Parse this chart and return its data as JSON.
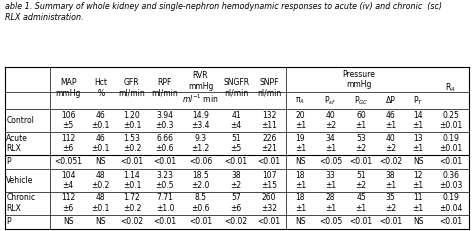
{
  "title": "able 1. Summary of whole kidney and single-nephron hemodynamic responses to acute (iv) and chronic  (sc)\nRLX administration.",
  "rows": [
    {
      "label": "Control",
      "data": [
        "106\n±5",
        "46\n±0.1",
        "1.20\n±0.1",
        "3.94\n±0.3",
        "14.9\n±3.4",
        "41\n±4",
        "132\n±11",
        "20\n±1",
        "40\n±2",
        "60\n±1",
        "46\n±1",
        "14\n±1",
        "0.25\n±0.01"
      ],
      "type": "data"
    },
    {
      "label": "Acute\nRLX",
      "data": [
        "112\n±6",
        "46\n±0.1",
        "1.53\n±0.2",
        "6.66\n±0.6",
        "9.3\n±1.2",
        "51\n±5",
        "226\n±21",
        "19\n±1",
        "34\n±1",
        "53\n±2",
        "40\n±2",
        "13\n±1",
        "0.19\n±0.01"
      ],
      "type": "data"
    },
    {
      "label": "P",
      "data": [
        "<0.051",
        "NS",
        "<0.01",
        "<0.01",
        "<0.06",
        "<0.01",
        "<0.01",
        "NS",
        "<0.05",
        "<0.01",
        "<0.02",
        "NS",
        "<0.01"
      ],
      "type": "p"
    },
    {
      "label": "Vehicle",
      "data": [
        "104\n±4",
        "48\n±0.2",
        "1.14\n±0.1",
        "3.23\n±0.5",
        "18.5\n±2.0",
        "38\n±2",
        "107\n±15",
        "18\n±1",
        "33\n±1",
        "51\n±2",
        "38\n±1",
        "12\n±1",
        "0.36\n±0.03"
      ],
      "type": "data"
    },
    {
      "label": "Chronic\nRLX",
      "data": [
        "112\n±6",
        "48\n±0.1",
        "1.72\n±0.2",
        "7.71\n±1.0",
        "8.5\n±0.6",
        "57\n±6",
        "260\n±32",
        "18\n±1",
        "28\n±1",
        "45\n±1",
        "35\n±2",
        "11\n±1",
        "0.19\n±0.04"
      ],
      "type": "data"
    },
    {
      "label": "P",
      "data": [
        "NS",
        "NS",
        "<0.02",
        "<0.01",
        "<0.01",
        "<0.02",
        "<0.01",
        "NS",
        "<0.05",
        "<0.01",
        "<0.01",
        "NS",
        "<0.01"
      ],
      "type": "p"
    }
  ],
  "bg_color": "#ffffff",
  "font_size": 5.5,
  "title_font_size": 5.8
}
